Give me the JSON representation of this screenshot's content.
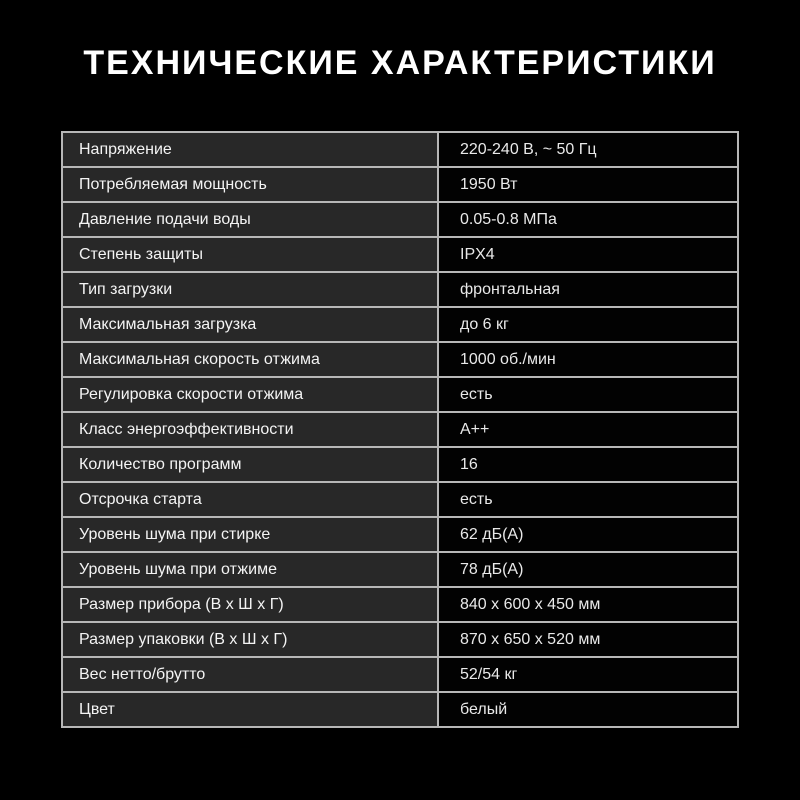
{
  "title": "ТЕХНИЧЕСКИЕ ХАРАКТЕРИСТИКИ",
  "colors": {
    "page_bg": "#000000",
    "title_text": "#ffffff",
    "border": "#b7b7b7",
    "label_cell_bg": "#282828",
    "value_cell_bg": "#020202",
    "label_text": "#f4f4f4",
    "value_text": "#e9e9e9"
  },
  "table": {
    "rows": [
      {
        "label": "Напряжение",
        "value": "220-240 В, ~ 50 Гц"
      },
      {
        "label": "Потребляемая мощность",
        "value": "1950 Вт"
      },
      {
        "label": "Давление подачи воды",
        "value": "0.05-0.8 МПа"
      },
      {
        "label": "Степень защиты",
        "value": "IPX4"
      },
      {
        "label": "Тип загрузки",
        "value": "фронтальная"
      },
      {
        "label": "Максимальная загрузка",
        "value": "до 6 кг"
      },
      {
        "label": "Максимальная скорость отжима",
        "value": "1000 об./мин"
      },
      {
        "label": "Регулировка скорости отжима",
        "value": "есть"
      },
      {
        "label": "Класс энергоэффективности",
        "value": "А++"
      },
      {
        "label": "Количество программ",
        "value": "16"
      },
      {
        "label": "Отсрочка старта",
        "value": "есть"
      },
      {
        "label": "Уровень шума при стирке",
        "value": "62 дБ(А)"
      },
      {
        "label": "Уровень шума при отжиме",
        "value": "78 дБ(А)"
      },
      {
        "label": "Размер прибора (В х Ш х Г)",
        "value": "840 х 600 х 450 мм"
      },
      {
        "label": "Размер упаковки (В х Ш х Г)",
        "value": "870 х 650 х 520 мм"
      },
      {
        "label": "Вес нетто/брутто",
        "value": "52/54 кг"
      },
      {
        "label": "Цвет",
        "value": "белый"
      }
    ]
  }
}
